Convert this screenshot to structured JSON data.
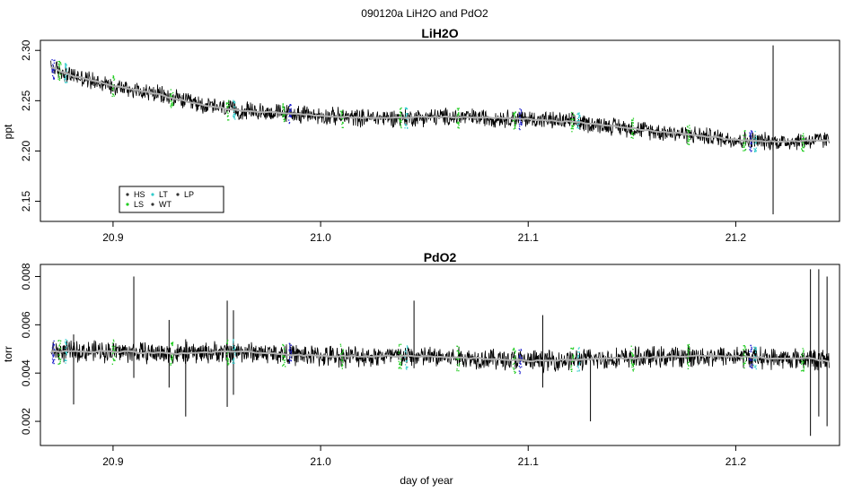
{
  "figure_title": "090120a   LiH2O and PdO2",
  "chart_data": [
    {
      "type": "line",
      "title": "LiH2O",
      "xlabel": "",
      "ylabel": "ppt",
      "xlim": [
        20.865,
        21.25
      ],
      "ylim": [
        2.13,
        2.31
      ],
      "x_ticks": [
        20.9,
        21.0,
        21.1,
        21.2
      ],
      "x_tick_labels": [
        "20.9",
        "21.0",
        "21.1",
        "21.2"
      ],
      "y_ticks": [
        2.15,
        2.2,
        2.25,
        2.3
      ],
      "y_tick_labels": [
        "2.15",
        "2.20",
        "2.25",
        "2.30"
      ],
      "grid": false,
      "legend": {
        "position": "bottom-left",
        "entries": [
          {
            "label": "HS",
            "color": "#333333"
          },
          {
            "label": "LT",
            "color": "#33cccc"
          },
          {
            "label": "LP",
            "color": "#333333"
          },
          {
            "label": "LS",
            "color": "#22cc22"
          },
          {
            "label": "WT",
            "color": "#333333"
          }
        ]
      },
      "series": [
        {
          "style": "raw noisy trace (black)",
          "color": "#000000",
          "noise_amplitude": 0.008,
          "x": [
            20.87,
            20.88,
            20.9,
            20.92,
            20.94,
            20.96,
            20.98,
            21.0,
            21.02,
            21.04,
            21.06,
            21.08,
            21.1,
            21.12,
            21.14,
            21.16,
            21.18,
            21.2,
            21.22,
            21.245
          ],
          "y": [
            2.283,
            2.275,
            2.265,
            2.257,
            2.247,
            2.24,
            2.238,
            2.235,
            2.233,
            2.233,
            2.234,
            2.233,
            2.232,
            2.229,
            2.225,
            2.22,
            2.216,
            2.211,
            2.209,
            2.211
          ]
        },
        {
          "style": "smoothed trace (gray)",
          "color": "#b0b0b0",
          "x": [
            20.87,
            20.88,
            20.9,
            20.92,
            20.94,
            20.96,
            20.98,
            21.0,
            21.02,
            21.04,
            21.06,
            21.08,
            21.1,
            21.12,
            21.14,
            21.16,
            21.18,
            21.2,
            21.22,
            21.245
          ],
          "y": [
            2.283,
            2.275,
            2.265,
            2.257,
            2.247,
            2.24,
            2.238,
            2.235,
            2.233,
            2.233,
            2.234,
            2.233,
            2.232,
            2.229,
            2.225,
            2.22,
            2.216,
            2.211,
            2.209,
            2.211
          ]
        }
      ],
      "spikes": [
        {
          "x": 21.218,
          "ymin": 2.137,
          "ymax": 2.305
        }
      ],
      "markers": [
        {
          "x": 20.871,
          "color": "#2020cc"
        },
        {
          "x": 20.874,
          "color": "#22cc22"
        },
        {
          "x": 20.877,
          "color": "#33cccc"
        },
        {
          "x": 20.9,
          "color": "#22cc22"
        },
        {
          "x": 20.928,
          "color": "#22cc22"
        },
        {
          "x": 20.955,
          "color": "#22cc22"
        },
        {
          "x": 20.958,
          "color": "#33cccc"
        },
        {
          "x": 20.982,
          "color": "#22cc22"
        },
        {
          "x": 20.985,
          "color": "#2020cc"
        },
        {
          "x": 21.01,
          "color": "#22cc22"
        },
        {
          "x": 21.038,
          "color": "#22cc22"
        },
        {
          "x": 21.041,
          "color": "#33cccc"
        },
        {
          "x": 21.066,
          "color": "#22cc22"
        },
        {
          "x": 21.093,
          "color": "#22cc22"
        },
        {
          "x": 21.096,
          "color": "#2020cc"
        },
        {
          "x": 21.121,
          "color": "#22cc22"
        },
        {
          "x": 21.124,
          "color": "#33cccc"
        },
        {
          "x": 21.15,
          "color": "#22cc22"
        },
        {
          "x": 21.177,
          "color": "#22cc22"
        },
        {
          "x": 21.204,
          "color": "#22cc22"
        },
        {
          "x": 21.207,
          "color": "#2020cc"
        },
        {
          "x": 21.209,
          "color": "#33cccc"
        },
        {
          "x": 21.232,
          "color": "#22cc22"
        }
      ]
    },
    {
      "type": "line",
      "title": "PdO2",
      "xlabel": "day of year",
      "ylabel": "torr",
      "xlim": [
        20.865,
        21.25
      ],
      "ylim": [
        0.001,
        0.0085
      ],
      "x_ticks": [
        20.9,
        21.0,
        21.1,
        21.2
      ],
      "x_tick_labels": [
        "20.9",
        "21.0",
        "21.1",
        "21.2"
      ],
      "y_ticks": [
        0.002,
        0.004,
        0.006,
        0.008
      ],
      "y_tick_labels": [
        "0.002",
        "0.004",
        "0.006",
        "0.008"
      ],
      "grid": false,
      "series": [
        {
          "style": "raw noisy trace (black)",
          "color": "#000000",
          "noise_amplitude": 0.0004,
          "x": [
            20.87,
            20.9,
            20.93,
            20.96,
            21.0,
            21.04,
            21.08,
            21.1,
            21.14,
            21.18,
            21.2,
            21.22,
            21.235,
            21.245
          ],
          "y": [
            0.0049,
            0.0049,
            0.0048,
            0.0049,
            0.0047,
            0.0047,
            0.0046,
            0.0045,
            0.0046,
            0.0047,
            0.0047,
            0.0046,
            0.0046,
            0.0045
          ]
        },
        {
          "style": "smoothed trace (gray)",
          "color": "#b0b0b0",
          "x": [
            20.87,
            20.9,
            20.93,
            20.96,
            21.0,
            21.04,
            21.08,
            21.1,
            21.14,
            21.18,
            21.2,
            21.22,
            21.235,
            21.245
          ],
          "y": [
            0.0049,
            0.0049,
            0.0048,
            0.0049,
            0.0047,
            0.0047,
            0.0046,
            0.0045,
            0.0046,
            0.0047,
            0.0047,
            0.0046,
            0.0046,
            0.0045
          ]
        }
      ],
      "spikes": [
        {
          "x": 20.881,
          "ymin": 0.0027,
          "ymax": 0.0056
        },
        {
          "x": 20.91,
          "ymin": 0.0038,
          "ymax": 0.008
        },
        {
          "x": 20.927,
          "ymin": 0.0034,
          "ymax": 0.0062
        },
        {
          "x": 20.935,
          "ymin": 0.0022,
          "ymax": 0.0054
        },
        {
          "x": 20.955,
          "ymin": 0.0026,
          "ymax": 0.007
        },
        {
          "x": 20.958,
          "ymin": 0.0031,
          "ymax": 0.0066
        },
        {
          "x": 21.045,
          "ymin": 0.0042,
          "ymax": 0.007
        },
        {
          "x": 21.107,
          "ymin": 0.0034,
          "ymax": 0.0064
        },
        {
          "x": 21.13,
          "ymin": 0.002,
          "ymax": 0.0048
        },
        {
          "x": 21.236,
          "ymin": 0.0014,
          "ymax": 0.0083
        },
        {
          "x": 21.24,
          "ymin": 0.0022,
          "ymax": 0.0083
        },
        {
          "x": 21.244,
          "ymin": 0.0018,
          "ymax": 0.008
        }
      ],
      "markers": [
        {
          "x": 20.871,
          "color": "#2020cc"
        },
        {
          "x": 20.874,
          "color": "#22cc22"
        },
        {
          "x": 20.877,
          "color": "#33cccc"
        },
        {
          "x": 20.9,
          "color": "#22cc22"
        },
        {
          "x": 20.928,
          "color": "#22cc22"
        },
        {
          "x": 20.955,
          "color": "#22cc22"
        },
        {
          "x": 20.958,
          "color": "#33cccc"
        },
        {
          "x": 20.982,
          "color": "#22cc22"
        },
        {
          "x": 20.985,
          "color": "#2020cc"
        },
        {
          "x": 21.01,
          "color": "#22cc22"
        },
        {
          "x": 21.038,
          "color": "#22cc22"
        },
        {
          "x": 21.041,
          "color": "#33cccc"
        },
        {
          "x": 21.066,
          "color": "#22cc22"
        },
        {
          "x": 21.093,
          "color": "#22cc22"
        },
        {
          "x": 21.096,
          "color": "#2020cc"
        },
        {
          "x": 21.121,
          "color": "#22cc22"
        },
        {
          "x": 21.124,
          "color": "#33cccc"
        },
        {
          "x": 21.15,
          "color": "#22cc22"
        },
        {
          "x": 21.177,
          "color": "#22cc22"
        },
        {
          "x": 21.204,
          "color": "#22cc22"
        },
        {
          "x": 21.207,
          "color": "#2020cc"
        },
        {
          "x": 21.209,
          "color": "#33cccc"
        },
        {
          "x": 21.232,
          "color": "#22cc22"
        }
      ]
    }
  ]
}
